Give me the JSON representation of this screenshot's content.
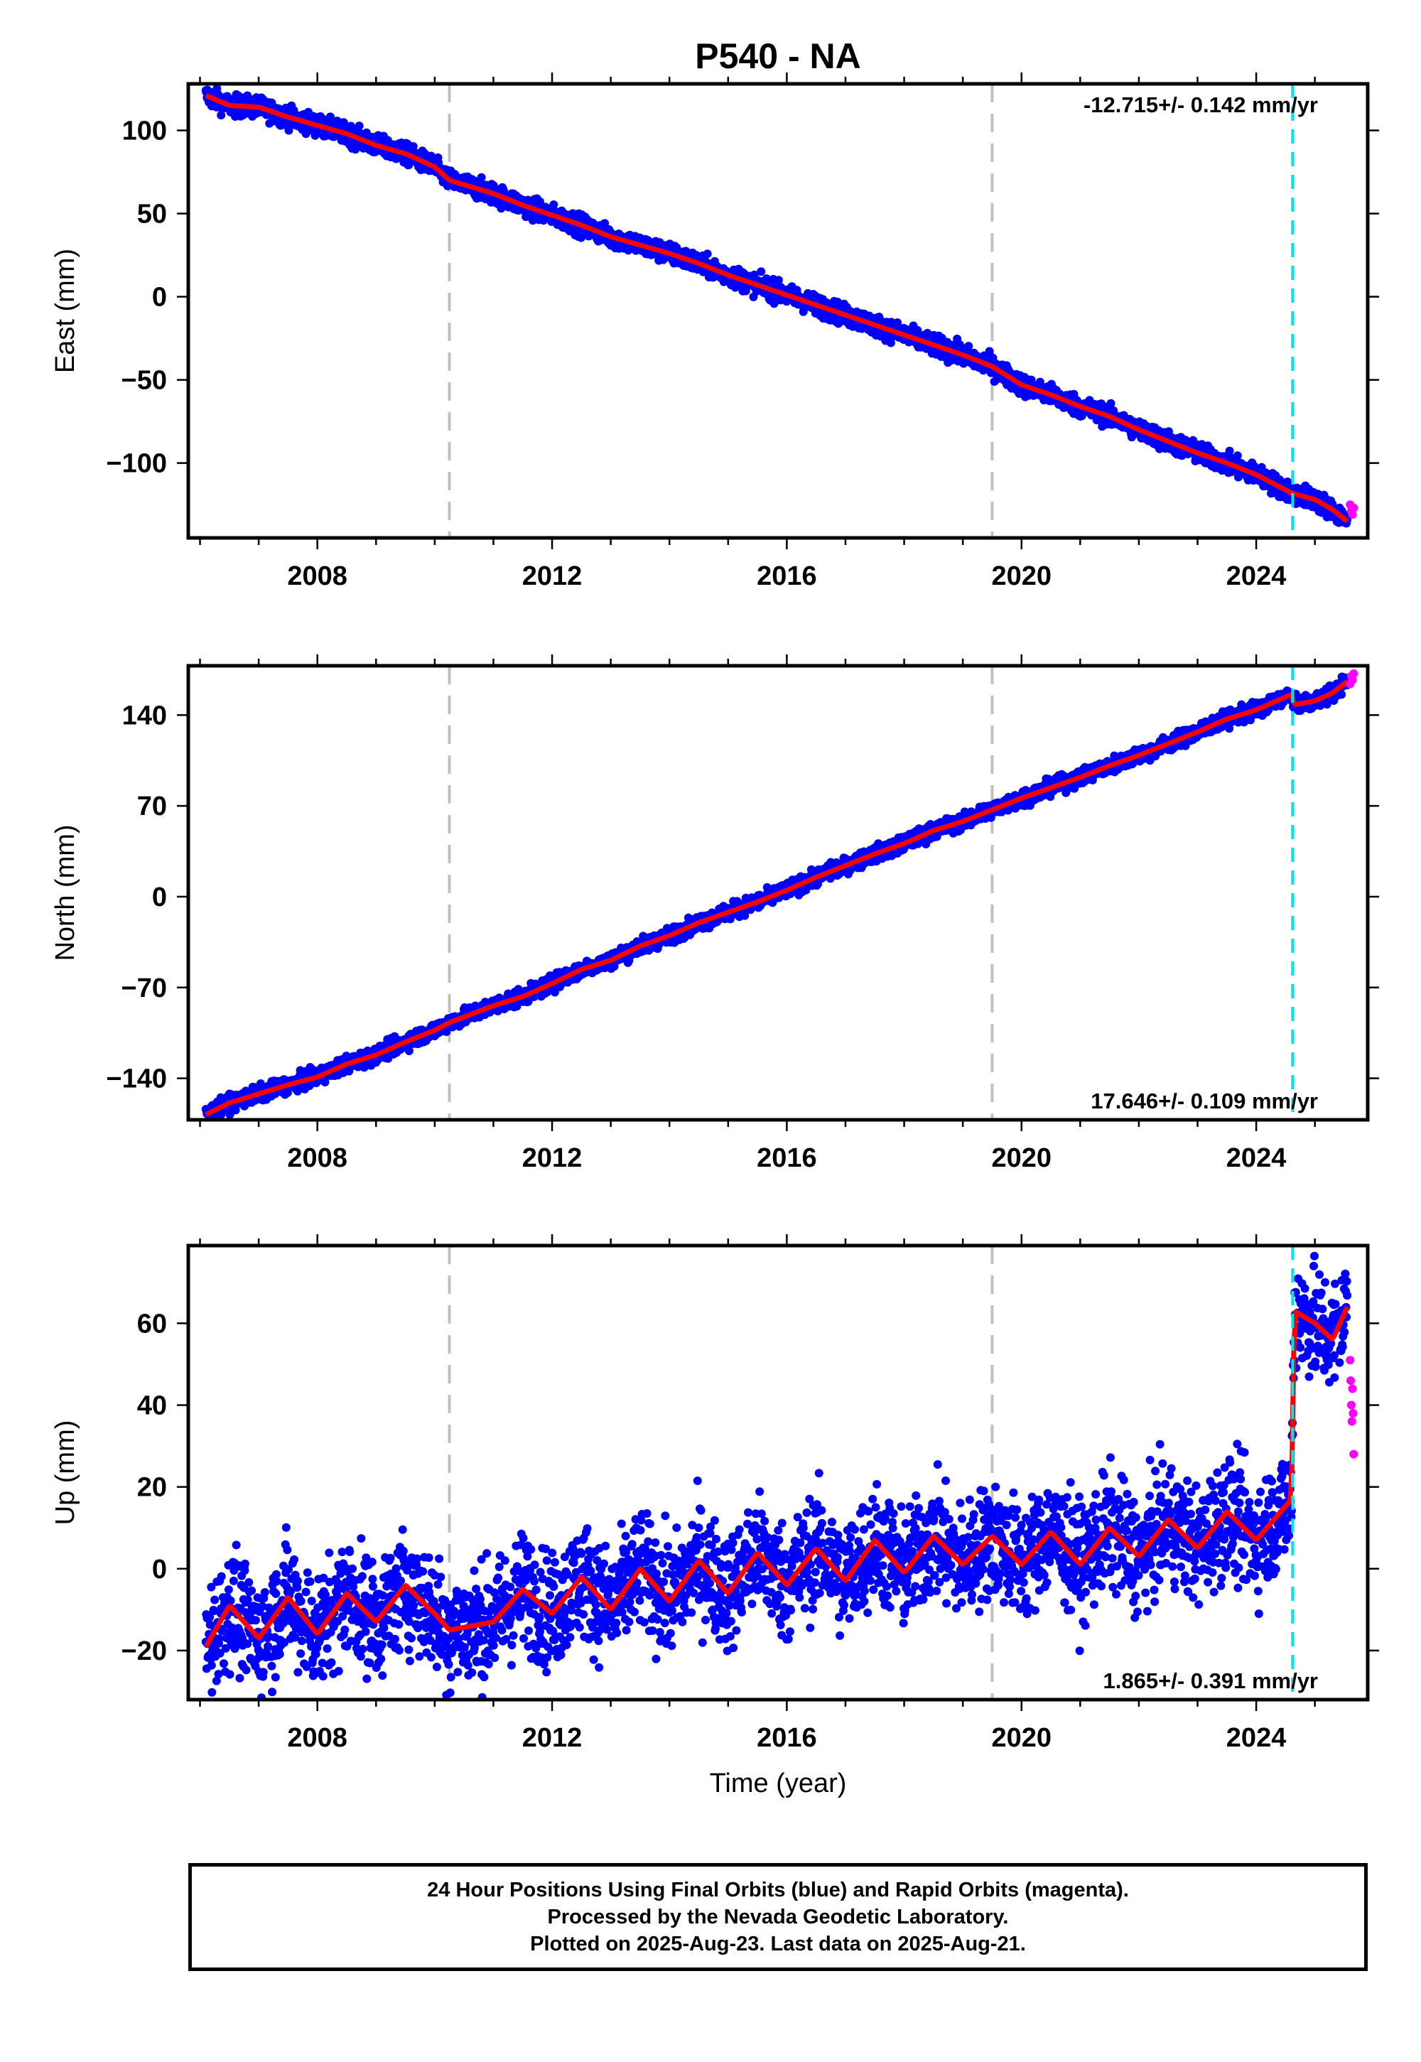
{
  "title": "P540 - NA",
  "x_label": "Time (year)",
  "footer": {
    "lines": [
      "24 Hour Positions Using Final Orbits (blue) and Rapid Orbits (magenta).",
      "Processed by the Nevada Geodetic Laboratory.",
      "Plotted on 2025-Aug-23. Last data on 2025-Aug-21."
    ]
  },
  "colors": {
    "final_orbits": "#0000ff",
    "rapid_orbits": "#ff00ff",
    "model_fit": "#ff0000",
    "equipment_change": "#c0c0c0",
    "earthquake": "#00e5e5"
  },
  "chart_data": [
    {
      "type": "scatter",
      "panel": "east",
      "ylabel": "East (mm)",
      "rate_label": "-12.715+/- 0.142 mm/yr",
      "rate_label_position": "top-right",
      "xlim": [
        2005.8,
        2025.9
      ],
      "ylim": [
        -145,
        128
      ],
      "yticks": [
        100,
        50,
        0,
        -50,
        -100
      ],
      "xticks": [
        2008,
        2012,
        2016,
        2020,
        2024
      ],
      "equipment_change_lines": [
        2010.25,
        2019.5
      ],
      "earthquake_lines": [
        2024.62
      ],
      "series": [
        {
          "role": "final",
          "x": [
            2006.1,
            2006.5,
            2007.0,
            2007.5,
            2008.0,
            2008.5,
            2009.0,
            2009.5,
            2010.0,
            2010.25,
            2011.0,
            2011.5,
            2012.0,
            2012.5,
            2013.0,
            2013.5,
            2014.0,
            2014.5,
            2015.0,
            2015.5,
            2016.0,
            2016.5,
            2017.0,
            2017.5,
            2018.0,
            2018.5,
            2019.0,
            2019.5,
            2020.0,
            2020.5,
            2021.0,
            2021.5,
            2022.0,
            2022.5,
            2023.0,
            2023.5,
            2024.0,
            2024.6,
            2025.0,
            2025.3,
            2025.55
          ],
          "y": [
            121,
            115,
            114,
            108,
            103,
            98,
            91,
            86,
            78,
            70,
            62,
            55,
            49,
            43,
            36,
            31,
            26,
            20,
            13,
            7,
            1,
            -5,
            -11,
            -17,
            -23,
            -29,
            -35,
            -42,
            -53,
            -59,
            -66,
            -72,
            -80,
            -87,
            -94,
            -100,
            -107,
            -118,
            -122,
            -128,
            -135
          ],
          "spread": 3
        },
        {
          "role": "rapid",
          "x": [
            2025.6,
            2025.62,
            2025.64,
            2025.66
          ],
          "y": [
            -125,
            -129,
            -131,
            -127
          ]
        }
      ]
    },
    {
      "type": "scatter",
      "panel": "north",
      "ylabel": "North (mm)",
      "rate_label": "17.646+/- 0.109 mm/yr",
      "rate_label_position": "bottom-right",
      "xlim": [
        2005.8,
        2025.9
      ],
      "ylim": [
        -172,
        178
      ],
      "yticks": [
        140,
        70,
        0,
        -70,
        -140
      ],
      "xticks": [
        2008,
        2012,
        2016,
        2020,
        2024
      ],
      "equipment_change_lines": [
        2010.25,
        2019.5
      ],
      "earthquake_lines": [
        2024.62
      ],
      "series": [
        {
          "role": "final",
          "x": [
            2006.1,
            2006.5,
            2007.0,
            2007.5,
            2008.0,
            2008.5,
            2009.0,
            2009.5,
            2010.0,
            2010.25,
            2011.0,
            2011.5,
            2012.0,
            2012.5,
            2013.0,
            2013.5,
            2014.0,
            2014.5,
            2015.0,
            2015.5,
            2016.0,
            2016.5,
            2017.0,
            2017.5,
            2018.0,
            2018.5,
            2019.0,
            2019.5,
            2020.0,
            2020.5,
            2021.0,
            2021.5,
            2022.0,
            2022.5,
            2023.0,
            2023.5,
            2024.0,
            2024.6,
            2024.65,
            2025.0,
            2025.3,
            2025.55
          ],
          "y": [
            -168,
            -159,
            -152,
            -145,
            -139,
            -129,
            -122,
            -112,
            -103,
            -97,
            -84,
            -77,
            -67,
            -56,
            -49,
            -38,
            -30,
            -20,
            -12,
            -4,
            5,
            15,
            24,
            33,
            41,
            51,
            58,
            67,
            76,
            84,
            92,
            101,
            109,
            118,
            127,
            137,
            144,
            156,
            148,
            151,
            157,
            166
          ],
          "spread": 3
        },
        {
          "role": "rapid",
          "x": [
            2025.6,
            2025.62,
            2025.64,
            2025.66
          ],
          "y": [
            164,
            170,
            167,
            172
          ]
        }
      ]
    },
    {
      "type": "scatter",
      "panel": "up",
      "ylabel": "Up (mm)",
      "rate_label": "1.865+/- 0.391 mm/yr",
      "rate_label_position": "bottom-right",
      "xlim": [
        2005.8,
        2025.9
      ],
      "ylim": [
        -32,
        79
      ],
      "yticks": [
        60,
        40,
        20,
        0,
        -20
      ],
      "xticks": [
        2008,
        2012,
        2016,
        2020,
        2024
      ],
      "equipment_change_lines": [
        2010.25,
        2019.5
      ],
      "earthquake_lines": [
        2024.62
      ],
      "series": [
        {
          "role": "final",
          "x": [
            2006.1,
            2006.5,
            2007.0,
            2007.5,
            2008.0,
            2008.5,
            2009.0,
            2009.5,
            2010.0,
            2010.25,
            2011.0,
            2011.5,
            2012.0,
            2012.5,
            2013.0,
            2013.5,
            2014.0,
            2014.5,
            2015.0,
            2015.5,
            2016.0,
            2016.5,
            2017.0,
            2017.5,
            2018.0,
            2018.5,
            2019.0,
            2019.5,
            2020.0,
            2020.5,
            2021.0,
            2021.5,
            2022.0,
            2022.5,
            2023.0,
            2023.5,
            2024.0,
            2024.6,
            2024.65,
            2025.0,
            2025.3,
            2025.55
          ],
          "y": [
            -19,
            -9,
            -17,
            -7,
            -16,
            -6,
            -13,
            -4,
            -11,
            -15,
            -13,
            -5,
            -11,
            -2,
            -10,
            0,
            -8,
            2,
            -6,
            4,
            -4,
            5,
            -3,
            7,
            -1,
            8,
            1,
            8,
            1,
            9,
            1,
            10,
            3,
            12,
            5,
            14,
            7,
            17,
            63,
            60,
            56,
            64
          ],
          "spread": 7
        },
        {
          "role": "rapid",
          "x": [
            2025.6,
            2025.61,
            2025.62,
            2025.63,
            2025.64,
            2025.65,
            2025.66
          ],
          "y": [
            51,
            46,
            40,
            36,
            44,
            38,
            28
          ]
        }
      ]
    }
  ]
}
